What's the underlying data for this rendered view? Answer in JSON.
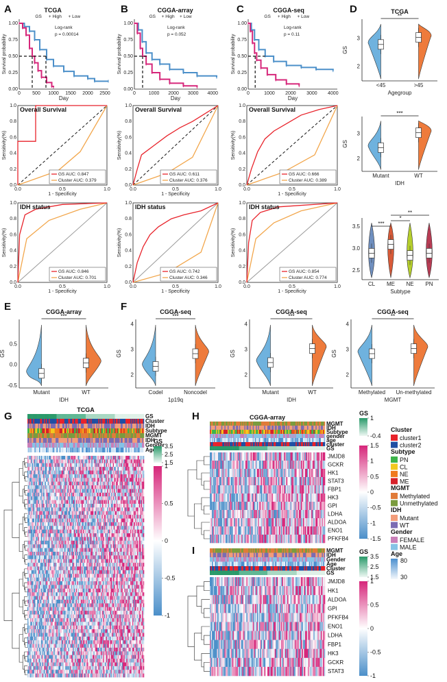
{
  "colors": {
    "high": "#d6267a",
    "low": "#4b8fc9",
    "gs_line": "#e8222a",
    "cluster_line": "#f2a64b",
    "mutant": "#6fb2de",
    "wt": "#ee7b3c",
    "hm_pos": "#d6267a",
    "hm_mid": "#ffffff",
    "hm_neg": "#4b8fc9"
  },
  "panel_labels": [
    "A",
    "B",
    "C",
    "D",
    "E",
    "F",
    "G",
    "H",
    "I"
  ],
  "km": [
    {
      "id": "A",
      "title": "TCGA",
      "legend_gs": "GS",
      "legend_high": "High",
      "legend_low": "Low",
      "test": "Log-rank",
      "p": "p = 0.00014",
      "ylabel": "Survival probability",
      "xlabel": "Day",
      "xticks": [
        "0",
        "500",
        "1000",
        "1500",
        "2000",
        "2500"
      ],
      "yticks": [
        "0.00",
        "0.25",
        "0.50",
        "0.75",
        "1.00"
      ],
      "xmax": 2600,
      "high": [
        [
          0,
          1
        ],
        [
          100,
          0.93
        ],
        [
          200,
          0.82
        ],
        [
          300,
          0.62
        ],
        [
          380,
          0.5
        ],
        [
          450,
          0.4
        ],
        [
          550,
          0.28
        ],
        [
          650,
          0.18
        ],
        [
          800,
          0.1
        ],
        [
          950,
          0.04
        ],
        [
          1000,
          0.03
        ]
      ],
      "low": [
        [
          0,
          1
        ],
        [
          150,
          0.95
        ],
        [
          300,
          0.88
        ],
        [
          450,
          0.75
        ],
        [
          600,
          0.6
        ],
        [
          800,
          0.45
        ],
        [
          1000,
          0.35
        ],
        [
          1300,
          0.27
        ],
        [
          1600,
          0.2
        ],
        [
          2000,
          0.16
        ],
        [
          2200,
          0.12
        ],
        [
          2600,
          0.12
        ]
      ],
      "median_high": 380,
      "median_low": 780
    },
    {
      "id": "B",
      "title": "CGGA-array",
      "legend_gs": "GS",
      "legend_high": "High",
      "legend_low": "Low",
      "test": "Log-rank",
      "p": "p = 0.052",
      "ylabel": "Survival probability",
      "xlabel": "Day",
      "xticks": [
        "0",
        "1000",
        "2000",
        "3000",
        "4000"
      ],
      "yticks": [
        "0.00",
        "0.25",
        "0.50",
        "0.75",
        "1.00"
      ],
      "xmax": 4200,
      "high": [
        [
          0,
          1
        ],
        [
          150,
          0.85
        ],
        [
          300,
          0.62
        ],
        [
          420,
          0.5
        ],
        [
          600,
          0.38
        ],
        [
          900,
          0.25
        ],
        [
          1300,
          0.15
        ],
        [
          1800,
          0.09
        ],
        [
          2500,
          0.05
        ],
        [
          3200,
          0.03
        ]
      ],
      "low": [
        [
          0,
          1
        ],
        [
          200,
          0.9
        ],
        [
          400,
          0.72
        ],
        [
          600,
          0.55
        ],
        [
          900,
          0.45
        ],
        [
          1300,
          0.38
        ],
        [
          1800,
          0.3
        ],
        [
          2500,
          0.25
        ],
        [
          3200,
          0.2
        ],
        [
          4200,
          0.18
        ]
      ],
      "median_high": 420,
      "median_low": 700
    },
    {
      "id": "C",
      "title": "CGGA-seq",
      "legend_gs": "GS",
      "legend_high": "High",
      "legend_low": "Low",
      "test": "Log-rank",
      "p": "p = 0.11",
      "ylabel": "Survival probability",
      "xlabel": "Day",
      "xticks": [
        "0",
        "1000",
        "2000",
        "3000",
        "4000"
      ],
      "yticks": [
        "0.00",
        "0.25",
        "0.50",
        "0.75",
        "1.00"
      ],
      "xmax": 4200,
      "high": [
        [
          0,
          1
        ],
        [
          100,
          0.88
        ],
        [
          200,
          0.7
        ],
        [
          300,
          0.55
        ],
        [
          400,
          0.44
        ],
        [
          600,
          0.32
        ],
        [
          900,
          0.22
        ],
        [
          1300,
          0.14
        ],
        [
          1800,
          0.08
        ],
        [
          2400,
          0.05
        ]
      ],
      "low": [
        [
          0,
          1
        ],
        [
          150,
          0.9
        ],
        [
          300,
          0.75
        ],
        [
          500,
          0.6
        ],
        [
          800,
          0.5
        ],
        [
          1200,
          0.42
        ],
        [
          1800,
          0.36
        ],
        [
          2500,
          0.33
        ],
        [
          3200,
          0.3
        ],
        [
          4000,
          0.28
        ]
      ],
      "median_high": 330,
      "median_low": 800
    }
  ],
  "roc": [
    {
      "title": "Overall Survival",
      "gs_auc": "GS AUC: 0.847",
      "cl_auc": "Cluster AUC: 0.379",
      "xlabel": "1 - Specificity",
      "ylabel": "Sensitivity(%)",
      "gs": [
        [
          0,
          0
        ],
        [
          0,
          0.55
        ],
        [
          0.2,
          0.55
        ],
        [
          0.2,
          1
        ],
        [
          1,
          1
        ]
      ],
      "cl": [
        [
          0,
          0
        ],
        [
          0.45,
          0.18
        ],
        [
          0.7,
          0.42
        ],
        [
          1,
          1
        ]
      ]
    },
    {
      "title": "Overall Survival",
      "gs_auc": "GS AUC: 0.611",
      "cl_auc": "Cluster AUC: 0.376",
      "xlabel": "1 - Specificity",
      "ylabel": "Sensitivity(%)",
      "gs": [
        [
          0,
          0
        ],
        [
          0.05,
          0.2
        ],
        [
          0.1,
          0.38
        ],
        [
          0.25,
          0.5
        ],
        [
          0.4,
          0.62
        ],
        [
          0.55,
          0.72
        ],
        [
          0.7,
          0.8
        ],
        [
          0.85,
          0.9
        ],
        [
          1,
          1
        ]
      ],
      "cl": [
        [
          0,
          0
        ],
        [
          0.4,
          0.15
        ],
        [
          0.7,
          0.35
        ],
        [
          1,
          1
        ]
      ]
    },
    {
      "title": "Overall Survival",
      "gs_auc": "GS AUC: 0.666",
      "cl_auc": "Cluster AUC: 0.389",
      "xlabel": "1 - Specificity",
      "ylabel": "Sensitivity(%)",
      "gs": [
        [
          0,
          0
        ],
        [
          0.05,
          0.2
        ],
        [
          0.12,
          0.42
        ],
        [
          0.2,
          0.58
        ],
        [
          0.3,
          0.68
        ],
        [
          0.45,
          0.78
        ],
        [
          0.6,
          0.88
        ],
        [
          0.8,
          0.95
        ],
        [
          1,
          1
        ]
      ],
      "cl": [
        [
          0,
          0
        ],
        [
          0.4,
          0.16
        ],
        [
          0.75,
          0.38
        ],
        [
          1,
          1
        ]
      ]
    },
    {
      "title": "IDH status",
      "gs_auc": "GS AUC: 0.846",
      "cl_auc": "Cluster AUC: 0.701",
      "xlabel": "1 - Specificity",
      "ylabel": "Sensitivity(%)",
      "gs": [
        [
          0,
          0
        ],
        [
          0.02,
          0.6
        ],
        [
          0.08,
          0.85
        ],
        [
          0.2,
          0.92
        ],
        [
          0.5,
          0.98
        ],
        [
          1,
          1
        ]
      ],
      "cl": [
        [
          0,
          0
        ],
        [
          0.1,
          0.55
        ],
        [
          0.35,
          0.78
        ],
        [
          0.7,
          0.92
        ],
        [
          1,
          1
        ]
      ]
    },
    {
      "title": "IDH status",
      "gs_auc": "GS AUC: 0.742",
      "cl_auc": "Cluster AUC: 0.346",
      "xlabel": "1 - Specificity",
      "ylabel": "Sensitivity(%)",
      "gs": [
        [
          0,
          0
        ],
        [
          0.05,
          0.25
        ],
        [
          0.12,
          0.45
        ],
        [
          0.2,
          0.6
        ],
        [
          0.3,
          0.7
        ],
        [
          0.45,
          0.8
        ],
        [
          0.6,
          0.85
        ],
        [
          0.8,
          0.9
        ],
        [
          1,
          1
        ]
      ],
      "cl": [
        [
          0,
          0
        ],
        [
          0.4,
          0.12
        ],
        [
          0.8,
          0.38
        ],
        [
          1,
          1
        ]
      ]
    },
    {
      "title": "IDH status",
      "gs_auc": "GS AUC: 0.854",
      "cl_auc": "Cluster AUC: 0.774",
      "xlabel": "1 - Specificity",
      "ylabel": "Sensitivity(%)",
      "gs": [
        [
          0,
          0
        ],
        [
          0.02,
          0.5
        ],
        [
          0.06,
          0.78
        ],
        [
          0.15,
          0.88
        ],
        [
          0.35,
          0.95
        ],
        [
          1,
          1
        ]
      ],
      "cl": [
        [
          0,
          0
        ],
        [
          0.1,
          0.55
        ],
        [
          0.3,
          0.75
        ],
        [
          0.6,
          0.9
        ],
        [
          1,
          1
        ]
      ]
    }
  ],
  "violins": [
    {
      "title": "TCGA",
      "ylabel": "GS",
      "xlabel": "Agegroup",
      "groups": [
        "<45",
        ">45"
      ],
      "yticks": [
        "2",
        "3"
      ],
      "ymin": 1.5,
      "ymax": 3.7,
      "sig": "**",
      "medians": [
        2.8,
        3.05
      ]
    },
    {
      "title": "",
      "ylabel": "GS",
      "xlabel": "IDH",
      "groups": [
        "Mutant",
        "WT"
      ],
      "yticks": [
        "2",
        "3"
      ],
      "ymin": 1.5,
      "ymax": 3.7,
      "sig": "***",
      "medians": [
        2.45,
        3.05
      ]
    },
    {
      "title": "",
      "ylabel": "",
      "xlabel": "Subtype",
      "groups": [
        "CL",
        "ME",
        "NE",
        "PN"
      ],
      "yticks": [
        "2.5",
        "3.0",
        "3.5"
      ],
      "ymin": 2.3,
      "ymax": 3.7,
      "sigs": [
        "***",
        "*",
        "**"
      ],
      "medians": [
        2.9,
        3.1,
        2.85,
        2.9
      ]
    },
    {
      "title": "CGGA-array",
      "ylabel": "GS",
      "xlabel": "IDH",
      "groups": [
        "Mutant",
        "WT"
      ],
      "yticks": [
        "-0.5",
        "0.0",
        "0.5"
      ],
      "ymin": -0.55,
      "ymax": 1.1,
      "sig": "***",
      "medians": [
        -0.2,
        0.05
      ]
    },
    {
      "title": "CGGA-seq",
      "ylabel": "GS",
      "xlabel": "1p19q",
      "groups": [
        "Codel",
        "Noncodel"
      ],
      "yticks": [
        "2",
        "3",
        "4"
      ],
      "ymin": 1.5,
      "ymax": 4.2,
      "sig": "***",
      "medians": [
        2.35,
        2.85
      ]
    },
    {
      "title": "CGGA-seq",
      "ylabel": "GS",
      "xlabel": "IDH",
      "groups": [
        "Mutant",
        "WT"
      ],
      "yticks": [
        "2",
        "3",
        "4"
      ],
      "ymin": 1.5,
      "ymax": 4.2,
      "sig": "***",
      "medians": [
        2.5,
        3.05
      ]
    },
    {
      "title": "CGGA-seq",
      "ylabel": "GS",
      "xlabel": "MGMT",
      "groups": [
        "Methylated",
        "Un-methylated"
      ],
      "yticks": [
        "2",
        "3",
        "4"
      ],
      "ymin": 1.5,
      "ymax": 4.2,
      "sig": "**",
      "medians": [
        2.85,
        3.05
      ]
    }
  ],
  "heatmap_G": {
    "title": "TCGA",
    "annotations": [
      "GS",
      "Cluster",
      "IDH",
      "Subtype",
      "MGMT",
      "IDH",
      "Gender",
      "Age"
    ],
    "gs_scale": [
      "3.5",
      "2.5",
      "1.5"
    ],
    "gs_label": "GS",
    "expr_scale": [
      "1",
      "0.5",
      "0",
      "-0.5",
      "-1"
    ]
  },
  "heatmap_H": {
    "title": "CGGA-array",
    "annotations": [
      "MGMT",
      "IDH",
      "Subtype",
      "gender",
      "age",
      "cluster",
      "GS"
    ],
    "genes": [
      "JMJD8",
      "GCKR",
      "HK1",
      "STAT3",
      "FBP1",
      "HK3",
      "GPI",
      "LDHA",
      "ALDOA",
      "ENO1",
      "PFKFB4"
    ],
    "gs_label": "GS",
    "gs_scale": [
      "1",
      "-0.4"
    ],
    "expr_scale": [
      "1.5",
      "1",
      "0.5",
      "0",
      "-0.5",
      "-1",
      "-1.5"
    ]
  },
  "heatmap_I": {
    "annotations": [
      "MGMT",
      "IDH",
      "Gender",
      "Age",
      "Cluster",
      "GS"
    ],
    "genes": [
      "JMJD8",
      "HK1",
      "ALDOA",
      "GPI",
      "PFKFB4",
      "ENO1",
      "LDHA",
      "FBP1",
      "HK3",
      "GCKR",
      "STAT3"
    ],
    "gs_label": "GS",
    "gs_scale": [
      "3.5",
      "2.5",
      "1.5"
    ],
    "expr_scale": [
      "1",
      "0.5",
      "0",
      "-0.5",
      "-1"
    ]
  },
  "legend": [
    {
      "title": "Cluster",
      "items": [
        [
          "cluster1",
          "#e8222a"
        ],
        [
          "cluster2",
          "#1f4fa3"
        ]
      ]
    },
    {
      "title": "Subtype",
      "items": [
        [
          "PN",
          "#3db34a"
        ],
        [
          "CL",
          "#f2c81f"
        ],
        [
          "NE",
          "#f07a1e"
        ],
        [
          "ME",
          "#d6212a"
        ]
      ]
    },
    {
      "title": "MGMT",
      "items": [
        [
          "Methylated",
          "#e07b39"
        ],
        [
          "Unmethylated",
          "#7a9b3e"
        ]
      ]
    },
    {
      "title": "IDH",
      "items": [
        [
          "Mutant",
          "#f29c7a"
        ],
        [
          "WT",
          "#7b6cb3"
        ]
      ]
    },
    {
      "title": "Gender",
      "items": [
        [
          "FEMALE",
          "#c97fb8"
        ],
        [
          "MALE",
          "#86c3e6"
        ]
      ]
    },
    {
      "title": "Age",
      "scale": [
        "80",
        "30"
      ]
    }
  ]
}
